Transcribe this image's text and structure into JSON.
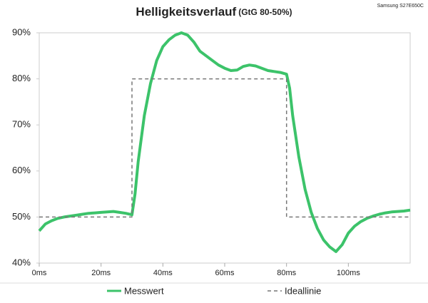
{
  "chart_data": {
    "type": "line",
    "title": "Helligkeitsverlauf",
    "subtitle": "(GtG 80-50%)",
    "corner_note": "Samsung S27E650C",
    "xlim": [
      0,
      120
    ],
    "ylim": [
      40,
      90
    ],
    "xticks": [
      {
        "value": 0,
        "label": "0ms"
      },
      {
        "value": 20,
        "label": "20ms"
      },
      {
        "value": 40,
        "label": "40ms"
      },
      {
        "value": 60,
        "label": "60ms"
      },
      {
        "value": 80,
        "label": "80ms"
      },
      {
        "value": 100,
        "label": "100ms"
      }
    ],
    "yticks": [
      {
        "value": 40,
        "label": "40%"
      },
      {
        "value": 50,
        "label": "50%"
      },
      {
        "value": 60,
        "label": "60%"
      },
      {
        "value": 70,
        "label": "70%"
      },
      {
        "value": 80,
        "label": "80%"
      },
      {
        "value": 90,
        "label": "90%"
      }
    ],
    "grid": false,
    "series": [
      {
        "name": "Messwert",
        "color": "#3cc36a",
        "dashed": false,
        "x": [
          0,
          2,
          4,
          6,
          8,
          10,
          12,
          14,
          16,
          18,
          20,
          22,
          24,
          26,
          28,
          30,
          31,
          32,
          34,
          36,
          38,
          40,
          42,
          44,
          46,
          48,
          50,
          52,
          54,
          56,
          58,
          60,
          62,
          64,
          66,
          68,
          70,
          72,
          74,
          76,
          78,
          80,
          81,
          82,
          84,
          86,
          88,
          90,
          92,
          94,
          96,
          98,
          100,
          102,
          104,
          106,
          108,
          110,
          112,
          114,
          116,
          118,
          120
        ],
        "values": [
          47,
          48.5,
          49.2,
          49.7,
          50,
          50.2,
          50.4,
          50.6,
          50.8,
          50.9,
          51,
          51.1,
          51.2,
          51,
          50.8,
          50.5,
          55,
          62,
          72,
          79,
          84,
          87,
          88.5,
          89.5,
          90,
          89.5,
          88,
          86,
          85,
          84,
          83,
          82.3,
          81.8,
          81.9,
          82.7,
          83,
          82.8,
          82.3,
          81.8,
          81.6,
          81.4,
          81,
          78,
          72,
          63,
          56,
          51,
          47.5,
          45,
          43.5,
          42.5,
          44,
          46.5,
          48,
          49,
          49.7,
          50.2,
          50.6,
          50.9,
          51.1,
          51.2,
          51.3,
          51.5
        ]
      },
      {
        "name": "Ideallinie",
        "color": "#777777",
        "dashed": true,
        "x": [
          0,
          30,
          30,
          80,
          80,
          120
        ],
        "values": [
          50,
          50,
          80,
          80,
          50,
          50
        ]
      }
    ]
  }
}
